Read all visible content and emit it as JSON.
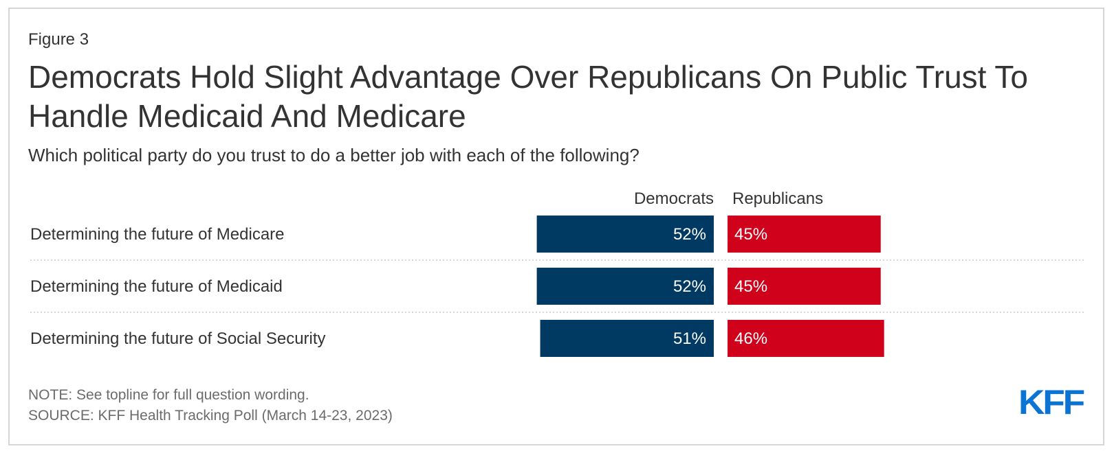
{
  "figure_label": "Figure 3",
  "title": "Democrats Hold Slight Advantage Over Republicans On Public Trust To Handle Medicaid And Medicare",
  "subtitle": "Which political party do you trust to do a better job with each of the following?",
  "note": "NOTE: See topline for full question wording.",
  "source": "SOURCE: KFF Health Tracking Poll (March 14-23, 2023)",
  "logo_text": "KFF",
  "colors": {
    "democrats": "#003a63",
    "republicans": "#d0021b",
    "text": "#333333",
    "muted": "#6b6b6b",
    "logo": "#0b73d3"
  },
  "chart_data": {
    "type": "bar",
    "orientation": "horizontal-diverging",
    "categories": [
      "Determining the future of Medicare",
      "Determining the future of Medicaid",
      "Determining the future of Social Security"
    ],
    "series": [
      {
        "name": "Democrats",
        "values": [
          52,
          52,
          51
        ],
        "labels": [
          "52%",
          "52%",
          "51%"
        ]
      },
      {
        "name": "Republicans",
        "values": [
          45,
          45,
          46
        ],
        "labels": [
          "45%",
          "45%",
          "46%"
        ]
      }
    ],
    "unit": "%",
    "xlim": [
      0,
      100
    ],
    "grid": false,
    "legend": "top, as column headers"
  }
}
